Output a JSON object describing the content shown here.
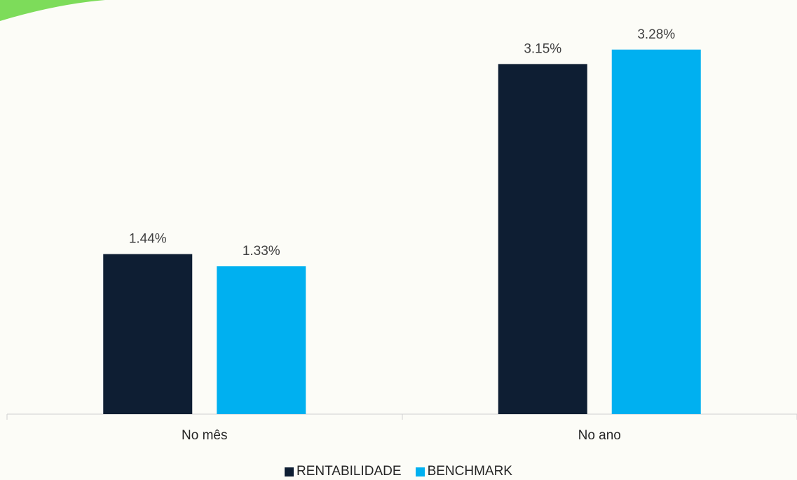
{
  "colors": {
    "background": "#fcfcf7",
    "corner_accent": "#7ddc5a",
    "axis": "#d0d0d0"
  },
  "chart_data": {
    "type": "bar",
    "categories": [
      "No mês",
      "No ano"
    ],
    "series": [
      {
        "name": "RENTABILIDADE",
        "color": "#0e1e33",
        "values": [
          1.44,
          3.15
        ],
        "labels": [
          "1.44%",
          "3.15%"
        ]
      },
      {
        "name": "BENCHMARK",
        "color": "#00b0f0",
        "values": [
          1.33,
          3.28
        ],
        "labels": [
          "1.33%",
          "3.28%"
        ]
      }
    ],
    "ylim": [
      0,
      3.6
    ],
    "grid": false,
    "legend_position": "bottom-center"
  }
}
